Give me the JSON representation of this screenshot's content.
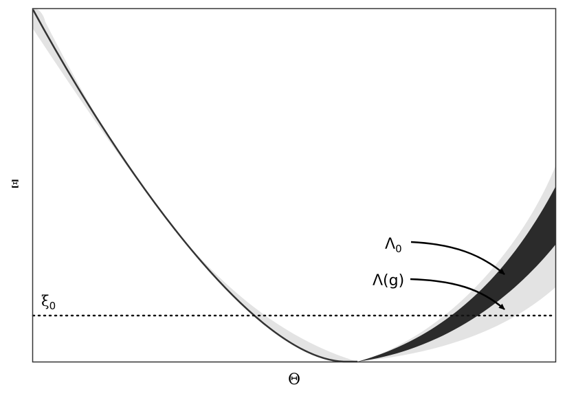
{
  "axes": {
    "x_label": "Θ",
    "y_label": "Ξ"
  },
  "threshold": {
    "label_base": "ξ",
    "label_sub": "0",
    "style": "dotted"
  },
  "callouts": {
    "lambda0_base": "Λ",
    "lambda0_sub": "0",
    "lambda_g": "Λ(g)"
  },
  "colors": {
    "curve": "#333333",
    "inner_band": "#2b2b2b",
    "outer_band": "#e3e3e3",
    "frame": "#333333"
  }
}
